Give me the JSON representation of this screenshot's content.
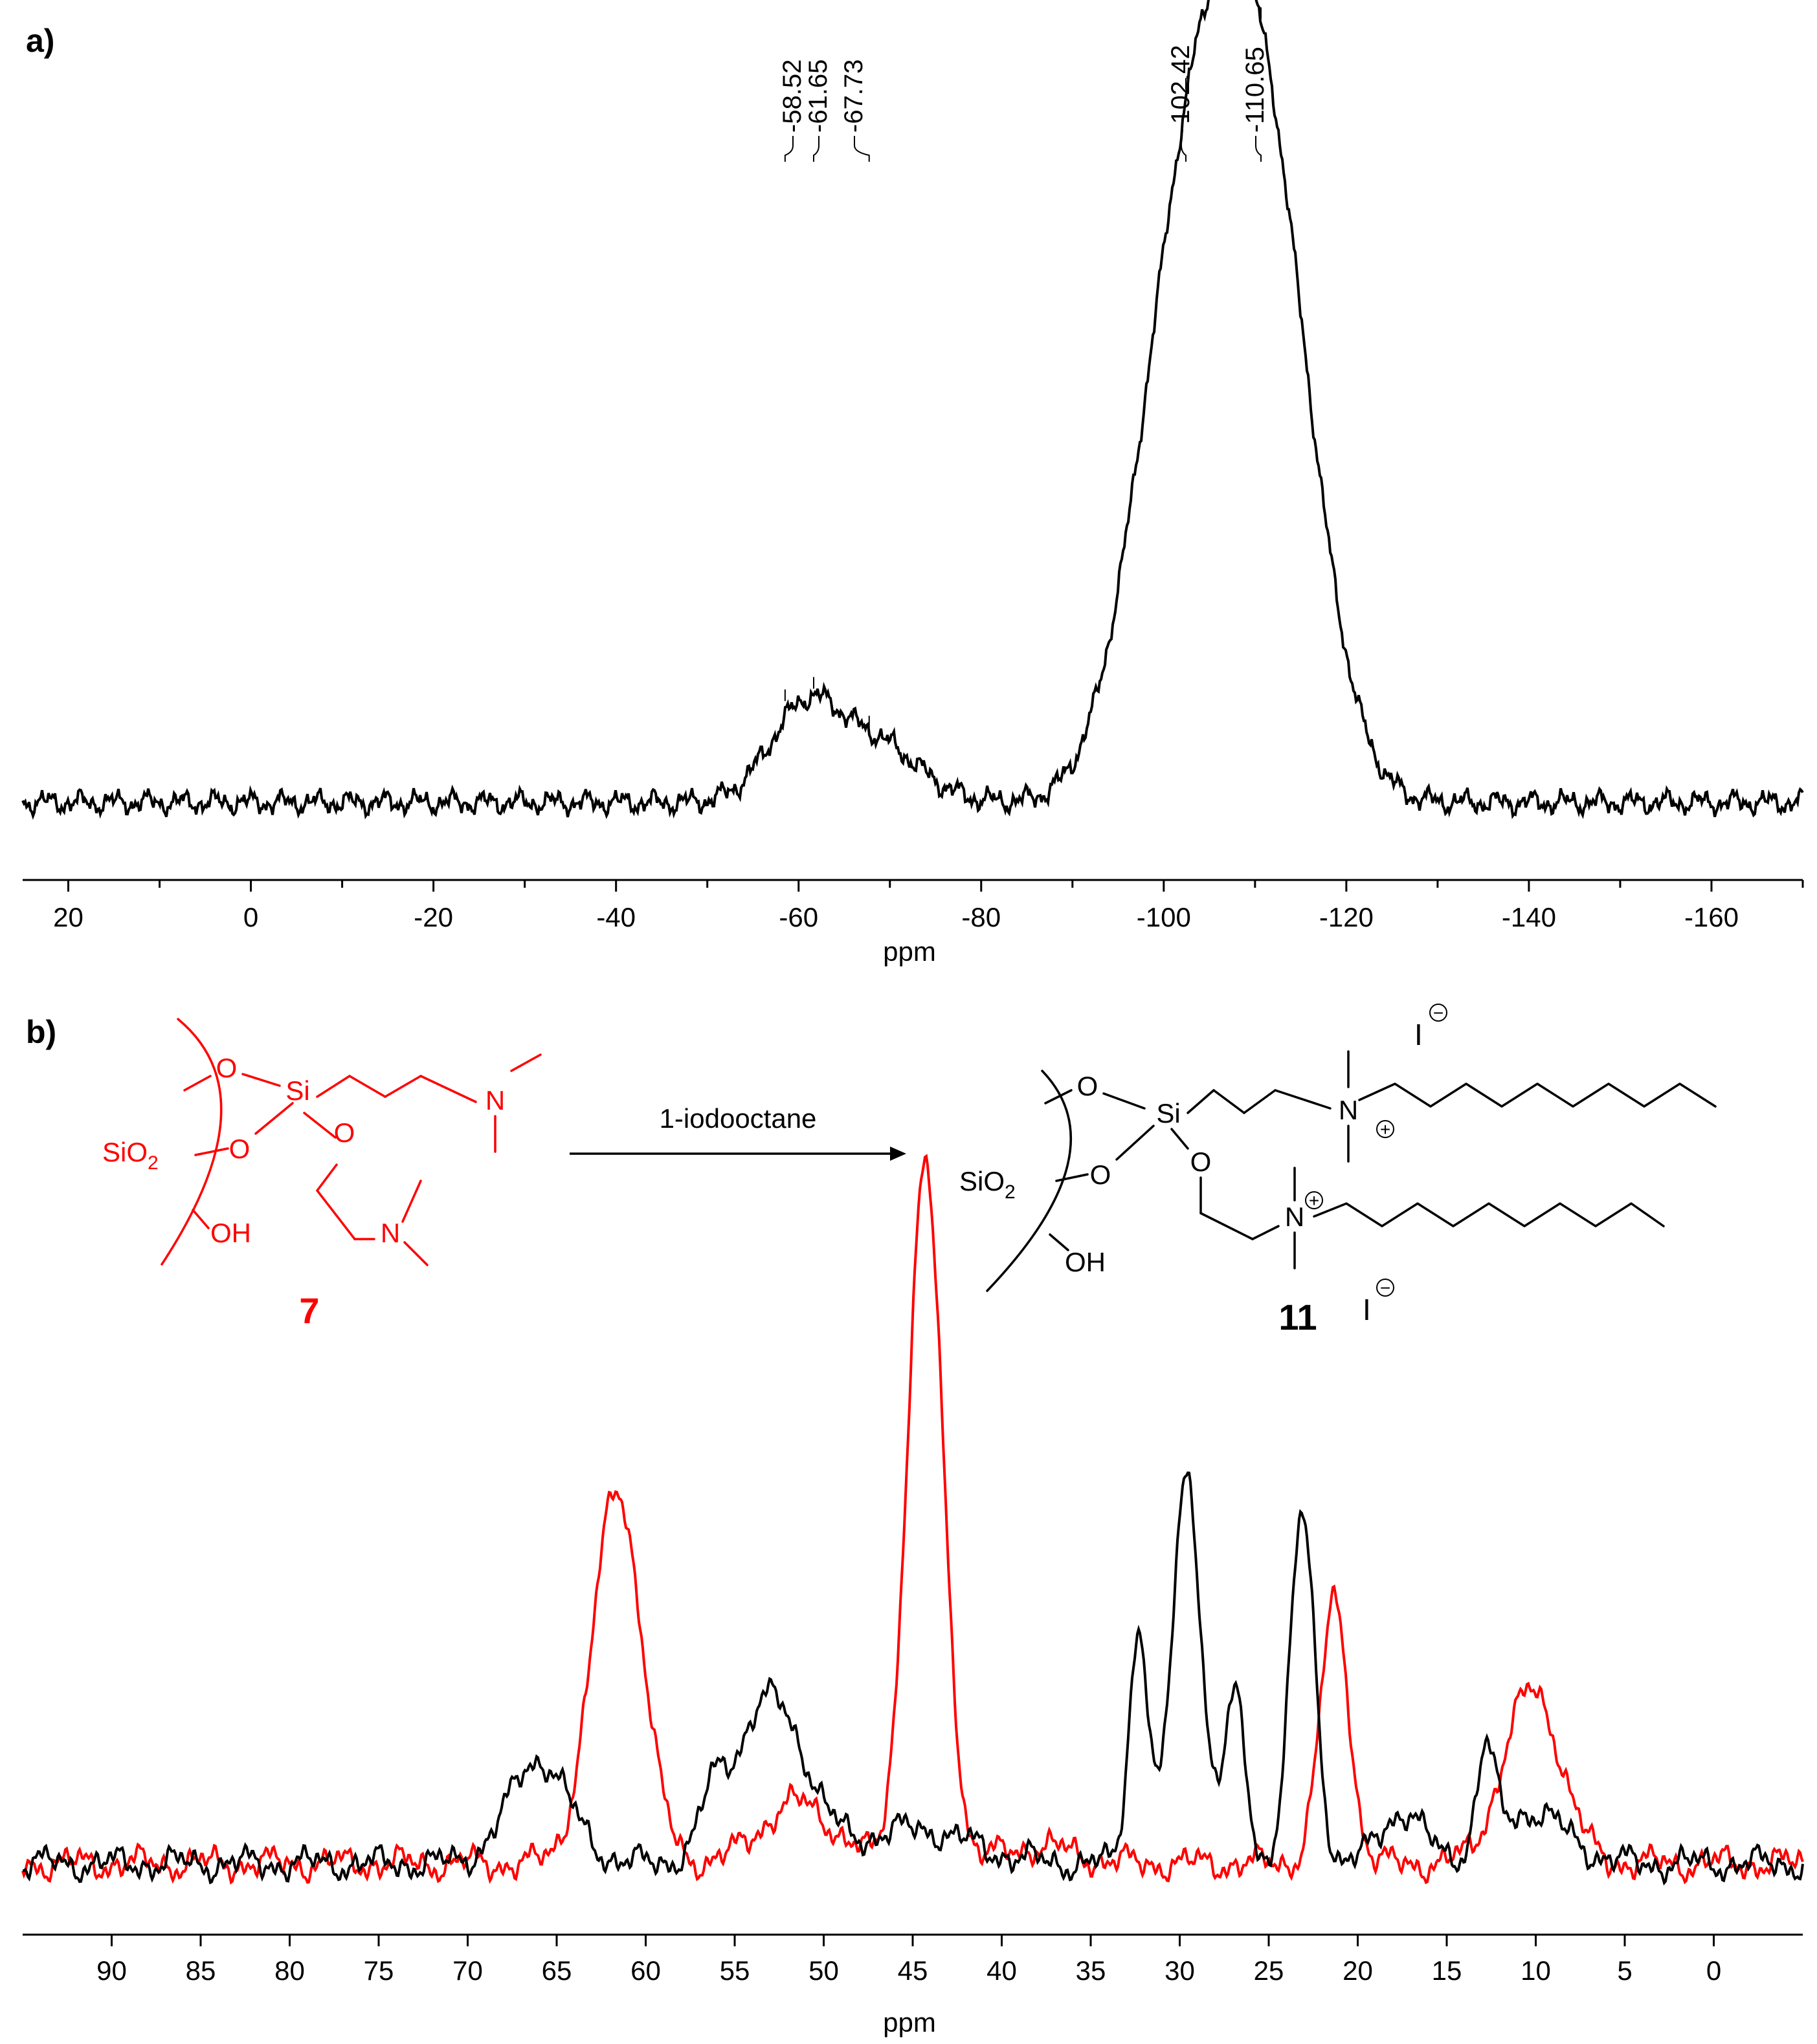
{
  "panel_a": {
    "label": "a)",
    "chart_data": {
      "type": "line",
      "xlabel": "ppm",
      "xlim": [
        25,
        -170
      ],
      "ticks": [
        20,
        0,
        -20,
        -40,
        -60,
        -80,
        -100,
        -120,
        -140,
        -160
      ],
      "tick_labels": [
        "20",
        "0",
        "-20",
        "-40",
        "-60",
        "-80",
        "-100",
        "-120",
        "-140",
        "-160"
      ],
      "peak_labels": [
        "-58.52",
        "-61.65",
        "-67.73",
        "-102.42",
        "-110.65"
      ],
      "peak_positions": [
        -58.52,
        -61.65,
        -67.73,
        -102.42,
        -110.65
      ],
      "series": [
        {
          "color": "#000000",
          "peaks": [
            {
              "center": -58.5,
              "height": 0.07,
              "width": 3.5
            },
            {
              "center": -61.7,
              "height": 0.07,
              "width": 3.0
            },
            {
              "center": -67.7,
              "height": 0.1,
              "width": 5.0
            },
            {
              "center": -102.4,
              "height": 0.78,
              "width": 5.5
            },
            {
              "center": -110.7,
              "height": 0.95,
              "width": 5.5
            }
          ]
        }
      ]
    }
  },
  "panel_b": {
    "label": "b)",
    "reaction": {
      "reagent": "1-iodooctane",
      "compound_left": "7",
      "compound_right": "11",
      "atoms": {
        "O": "O",
        "Si": "Si",
        "N": "N",
        "OH": "OH",
        "SiO": "SiO",
        "sub2": "2",
        "iodide": "I"
      },
      "charges": {
        "plus": "+",
        "minus": "−"
      }
    },
    "chart_data": {
      "type": "line",
      "xlabel": "ppm",
      "xlim": [
        95,
        -5
      ],
      "ticks": [
        90,
        85,
        80,
        75,
        70,
        65,
        60,
        55,
        50,
        45,
        40,
        35,
        30,
        25,
        20,
        15,
        10,
        5,
        0
      ],
      "tick_labels": [
        "90",
        "85",
        "80",
        "75",
        "70",
        "65",
        "60",
        "55",
        "50",
        "45",
        "40",
        "35",
        "30",
        "25",
        "20",
        "15",
        "10",
        "5",
        "0"
      ],
      "series": [
        {
          "color": "#ff0000",
          "peaks": [
            {
              "center": 61.6,
              "height": 0.43,
              "width": 1.4
            },
            {
              "center": 51.5,
              "height": 0.07,
              "width": 2.0
            },
            {
              "center": 44.3,
              "height": 0.8,
              "width": 1.0
            },
            {
              "center": 21.3,
              "height": 0.3,
              "width": 0.8
            },
            {
              "center": 10.2,
              "height": 0.2,
              "width": 1.6
            },
            {
              "center": 38.0,
              "height": 0.02,
              "width": 2.0
            }
          ]
        },
        {
          "color": "#000000",
          "peaks": [
            {
              "center": 66.0,
              "height": 0.12,
              "width": 1.7
            },
            {
              "center": 53.0,
              "height": 0.19,
              "width": 2.0
            },
            {
              "center": 56.2,
              "height": 0.05,
              "width": 0.7
            },
            {
              "center": 44.8,
              "height": 0.04,
              "width": 3.0
            },
            {
              "center": 32.3,
              "height": 0.27,
              "width": 0.55
            },
            {
              "center": 29.6,
              "height": 0.45,
              "width": 0.8
            },
            {
              "center": 26.9,
              "height": 0.19,
              "width": 0.6
            },
            {
              "center": 23.1,
              "height": 0.4,
              "width": 0.7
            },
            {
              "center": 17.5,
              "height": 0.06,
              "width": 1.2
            },
            {
              "center": 12.8,
              "height": 0.11,
              "width": 0.5
            },
            {
              "center": 10.3,
              "height": 0.06,
              "width": 2.0
            }
          ]
        }
      ]
    }
  }
}
